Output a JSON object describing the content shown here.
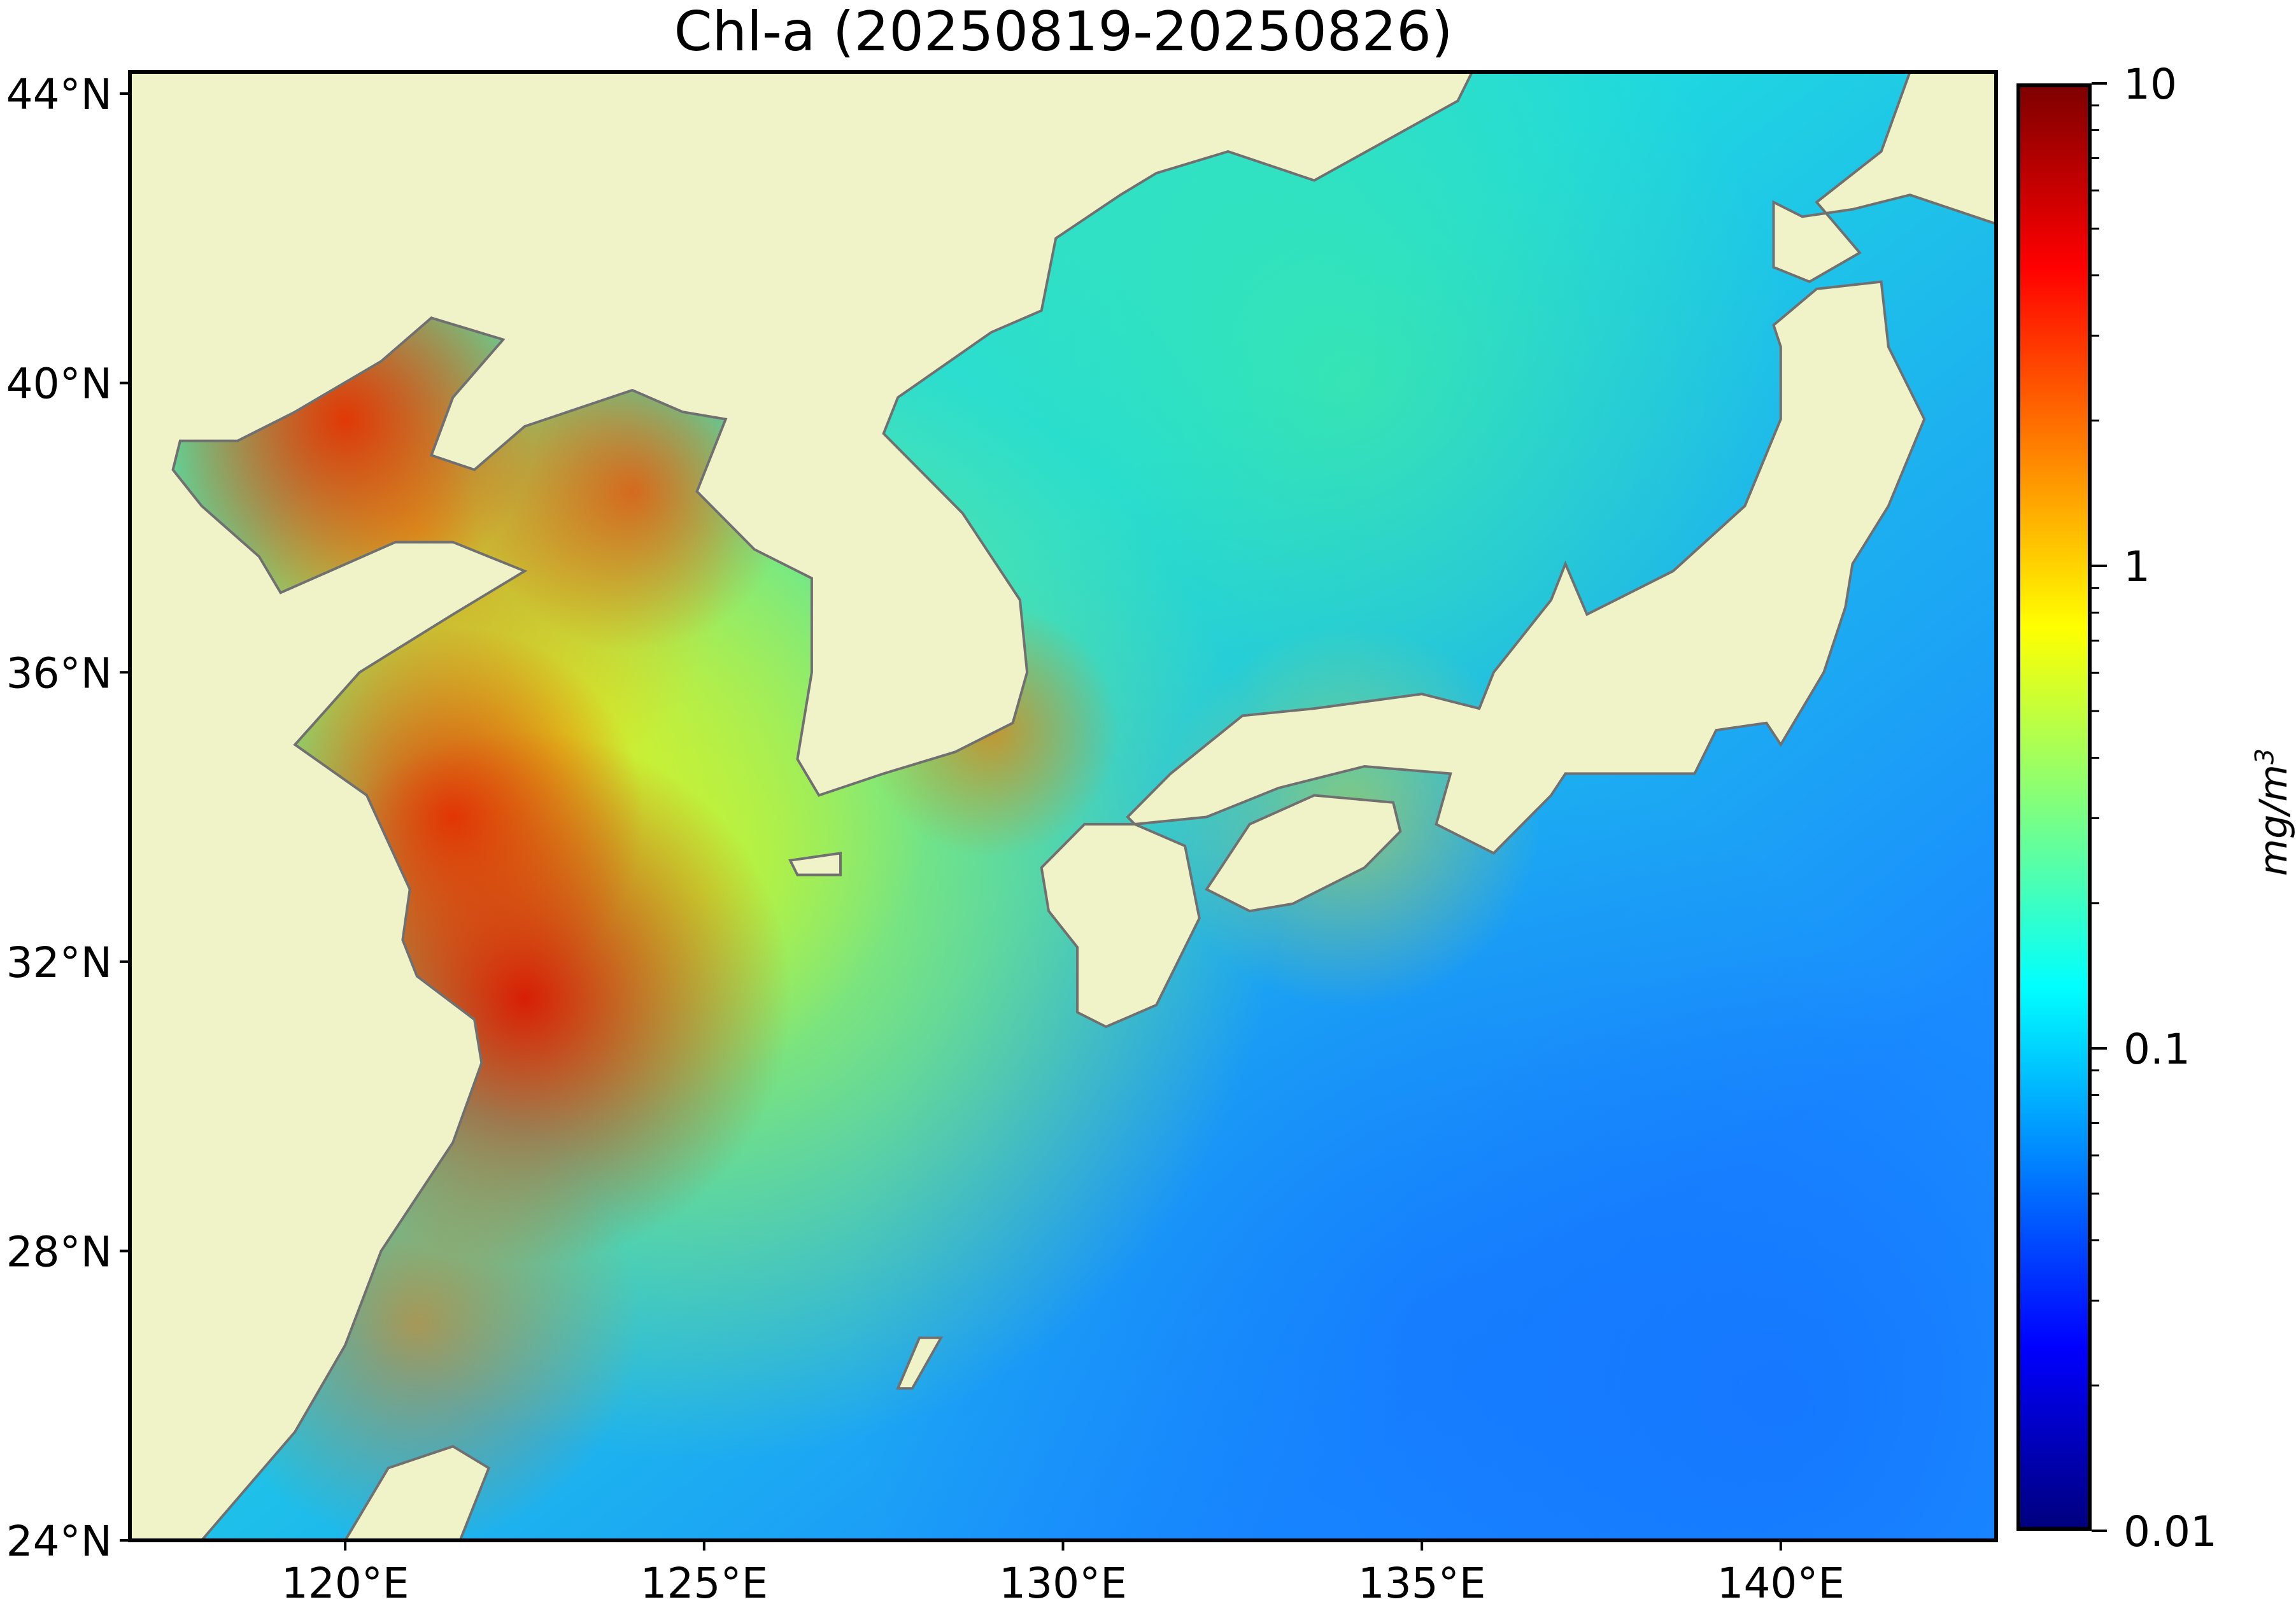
{
  "chart_data": {
    "type": "heatmap",
    "title": "Chl-a (20250819-20250826)",
    "xlim": [
      117,
      143
    ],
    "ylim": [
      24,
      44.3
    ],
    "x_ticks": [
      120,
      125,
      130,
      135,
      140
    ],
    "x_tick_labels": [
      "120°E",
      "125°E",
      "130°E",
      "135°E",
      "140°E"
    ],
    "y_ticks": [
      44,
      40,
      36,
      32,
      28,
      24
    ],
    "y_tick_labels": [
      "44°N",
      "40°N",
      "36°N",
      "32°N",
      "28°N",
      "24°N"
    ],
    "colorbar": {
      "scale": "log",
      "range": [
        0.01,
        10
      ],
      "ticks": [
        10,
        1,
        0.1,
        0.01
      ],
      "tick_labels": [
        "10",
        "1",
        "0.1",
        "0.01"
      ],
      "label": "mg/m",
      "label_superscript": "3",
      "colormap": "jet",
      "colormap_stops": [
        "#00007f",
        "#0000ff",
        "#007fff",
        "#00ffff",
        "#7fff7f",
        "#ffff00",
        "#ff7f00",
        "#ff0000",
        "#7f0000"
      ]
    },
    "colors": {
      "land": "#f0f2c8",
      "coastline": "#707070"
    }
  }
}
